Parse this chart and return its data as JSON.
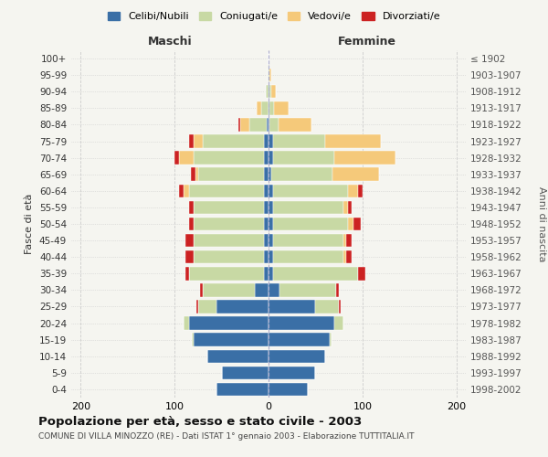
{
  "age_groups": [
    "0-4",
    "5-9",
    "10-14",
    "15-19",
    "20-24",
    "25-29",
    "30-34",
    "35-39",
    "40-44",
    "45-49",
    "50-54",
    "55-59",
    "60-64",
    "65-69",
    "70-74",
    "75-79",
    "80-84",
    "85-89",
    "90-94",
    "95-99",
    "100+"
  ],
  "birth_years": [
    "1998-2002",
    "1993-1997",
    "1988-1992",
    "1983-1987",
    "1978-1982",
    "1973-1977",
    "1968-1972",
    "1963-1967",
    "1958-1962",
    "1953-1957",
    "1948-1952",
    "1943-1947",
    "1938-1942",
    "1933-1937",
    "1928-1932",
    "1923-1927",
    "1918-1922",
    "1913-1917",
    "1908-1912",
    "1903-1907",
    "≤ 1902"
  ],
  "males": {
    "celibi": [
      55,
      50,
      65,
      80,
      85,
      55,
      15,
      5,
      5,
      5,
      5,
      5,
      5,
      5,
      5,
      5,
      2,
      0,
      0,
      0,
      0
    ],
    "coniugati": [
      0,
      0,
      0,
      2,
      5,
      20,
      55,
      80,
      75,
      75,
      75,
      75,
      80,
      70,
      75,
      65,
      18,
      8,
      3,
      1,
      0
    ],
    "vedovi": [
      0,
      0,
      0,
      0,
      0,
      0,
      0,
      0,
      0,
      0,
      0,
      0,
      5,
      3,
      15,
      10,
      10,
      5,
      0,
      0,
      0
    ],
    "divorziati": [
      0,
      0,
      0,
      0,
      0,
      2,
      3,
      3,
      8,
      8,
      5,
      5,
      5,
      5,
      5,
      5,
      2,
      0,
      0,
      0,
      0
    ]
  },
  "females": {
    "nubili": [
      42,
      50,
      60,
      65,
      70,
      50,
      12,
      5,
      5,
      5,
      5,
      5,
      5,
      3,
      5,
      5,
      1,
      1,
      1,
      0,
      0
    ],
    "coniugate": [
      0,
      0,
      0,
      2,
      10,
      25,
      60,
      90,
      75,
      75,
      80,
      75,
      80,
      65,
      65,
      55,
      10,
      5,
      2,
      1,
      0
    ],
    "vedove": [
      0,
      0,
      0,
      0,
      0,
      0,
      0,
      0,
      3,
      3,
      5,
      5,
      10,
      50,
      65,
      60,
      35,
      15,
      5,
      2,
      0
    ],
    "divorziate": [
      0,
      0,
      0,
      0,
      0,
      2,
      3,
      8,
      5,
      5,
      8,
      3,
      5,
      0,
      0,
      0,
      0,
      0,
      0,
      0,
      0
    ]
  },
  "colors": {
    "celibi": "#3a6fa6",
    "coniugati": "#c8d9a4",
    "vedovi": "#f5c97a",
    "divorziati": "#cc2222"
  },
  "title": "Popolazione per età, sesso e stato civile - 2003",
  "subtitle": "COMUNE DI VILLA MINOZZO (RE) - Dati ISTAT 1° gennaio 2003 - Elaborazione TUTTITALIA.IT",
  "xlabel_left": "Maschi",
  "xlabel_right": "Femmine",
  "ylabel_left": "Fasce di età",
  "ylabel_right": "Anni di nascita",
  "xlim": 210,
  "legend_labels": [
    "Celibi/Nubili",
    "Coniugati/e",
    "Vedovi/e",
    "Divorziati/e"
  ],
  "background_color": "#f5f5f0"
}
